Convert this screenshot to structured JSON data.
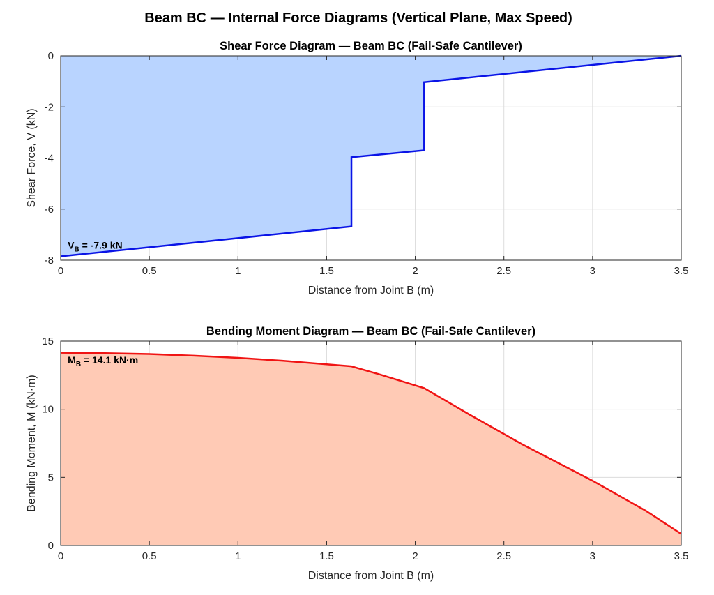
{
  "figure": {
    "suptitle": "Beam BC — Internal Force Diagrams (Vertical Plane, Max Speed)"
  },
  "chart_data": [
    {
      "type": "area",
      "title": "Shear Force Diagram — Beam BC (Fail-Safe Cantilever)",
      "xlabel": "Distance from Joint B (m)",
      "ylabel": "Shear Force, V (kN)",
      "xlim": [
        0,
        3.5
      ],
      "ylim": [
        -8,
        0
      ],
      "xticks": [
        0,
        0.5,
        1,
        1.5,
        2,
        2.5,
        3,
        3.5
      ],
      "xtick_labels": [
        "0",
        "0.5",
        "1",
        "1.5",
        "2",
        "2.5",
        "3",
        "3.5"
      ],
      "yticks": [
        -8,
        -6,
        -4,
        -2,
        0
      ],
      "ytick_labels": [
        "-8",
        "-6",
        "-4",
        "-2",
        "0"
      ],
      "grid": true,
      "line_color": "#0a14e6",
      "fill_color": "#b9d4ff",
      "series": [
        {
          "x": [
            0,
            1.64,
            1.64,
            2.05,
            2.05,
            3.5
          ],
          "y": [
            -7.85,
            -6.68,
            -3.97,
            -3.7,
            -1.03,
            0
          ]
        }
      ],
      "annotation": {
        "main": "V",
        "sub": "B",
        "rest": " = -7.9 kN",
        "x": 0.04,
        "y": -7.55
      }
    },
    {
      "type": "area",
      "title": "Bending Moment Diagram — Beam BC (Fail-Safe Cantilever)",
      "xlabel": "Distance from Joint B (m)",
      "ylabel": "Bending Moment, M (kN·m)",
      "xlim": [
        0,
        3.5
      ],
      "ylim": [
        0,
        15
      ],
      "xticks": [
        0,
        0.5,
        1,
        1.5,
        2,
        2.5,
        3,
        3.5
      ],
      "xtick_labels": [
        "0",
        "0.5",
        "1",
        "1.5",
        "2",
        "2.5",
        "3",
        "3.5"
      ],
      "yticks": [
        0,
        5,
        10,
        15
      ],
      "ytick_labels": [
        "0",
        "5",
        "10",
        "15"
      ],
      "grid": true,
      "line_color": "#f01414",
      "fill_color": "#ffcab5",
      "series": [
        {
          "x": [
            0,
            0.25,
            0.5,
            0.75,
            1.0,
            1.25,
            1.5,
            1.64,
            1.8,
            2.05,
            2.3,
            2.6,
            3.0,
            3.3,
            3.5
          ],
          "y": [
            14.15,
            14.12,
            14.05,
            13.93,
            13.77,
            13.56,
            13.3,
            13.15,
            12.55,
            11.55,
            9.65,
            7.45,
            4.75,
            2.55,
            0.85
          ]
        }
      ],
      "annotation": {
        "main": "M",
        "sub": "B",
        "rest": " = 14.1 kN·m",
        "x": 0.04,
        "y": 13.35
      }
    }
  ]
}
